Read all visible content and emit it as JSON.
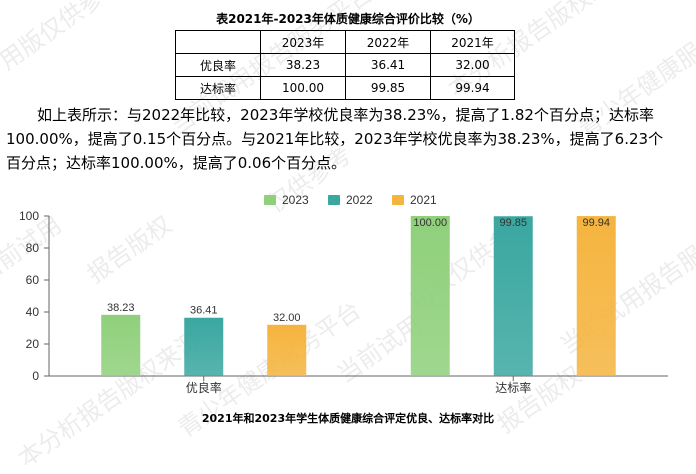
{
  "table": {
    "title": "表2021年-2023年体质健康综合评价比较（%）",
    "headers": [
      "",
      "2023年",
      "2022年",
      "2021年"
    ],
    "rows": [
      [
        "优良率",
        "38.23",
        "36.41",
        "32.00"
      ],
      [
        "达标率",
        "100.00",
        "99.85",
        "99.94"
      ]
    ]
  },
  "paragraph": "如上表所示：与2022年比较，2023年学校优良率为38.23%，提高了1.82个百分点；达标率100.00%，提高了0.15个百分点。与2021年比较，2023年学校优良率为38.23%，提高了6.23个百分点；达标率100.00%，提高了0.06个百分点。",
  "watermarks": [
    "用版仅供参",
    "当前试用报告服务平台",
    "本分析报告版权来源",
    "青少年健康服务平台",
    "当前试用",
    "报告版权",
    "仅供参考"
  ],
  "chart_data": {
    "type": "bar",
    "title": "2021年和2023年学生体质健康综合评定优良、达标率对比",
    "categories": [
      "优良率",
      "达标率"
    ],
    "series": [
      {
        "name": "2023",
        "values": [
          38.23,
          100.0
        ],
        "labels": [
          "38.23",
          "100.00"
        ],
        "color": "#8fd07b"
      },
      {
        "name": "2022",
        "values": [
          36.41,
          99.85
        ],
        "labels": [
          "36.41",
          "99.85"
        ],
        "color": "#3aa7a0"
      },
      {
        "name": "2021",
        "values": [
          32.0,
          99.94
        ],
        "labels": [
          "32.00",
          "99.94"
        ],
        "color": "#f5b43e"
      }
    ],
    "ylim": [
      0,
      100
    ],
    "yticks": [
      0,
      20,
      40,
      60,
      80,
      100
    ],
    "legend": "top-center",
    "grid": false
  }
}
